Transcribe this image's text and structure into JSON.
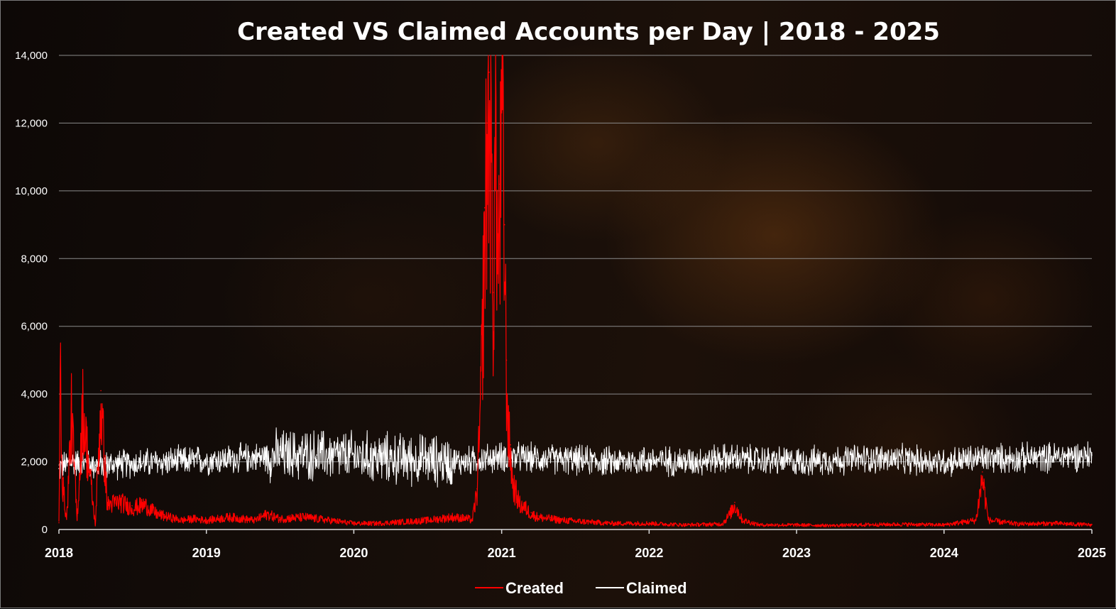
{
  "chart_data": {
    "type": "line",
    "title": "Created VS Claimed Accounts per Day | 2018 - 2025",
    "xlabel": "",
    "ylabel": "",
    "x_axis": "date",
    "xlim": [
      "2018-01-01",
      "2025-01-01"
    ],
    "ylim": [
      0,
      14000
    ],
    "x_ticks": [
      "2018",
      "2019",
      "2020",
      "2021",
      "2022",
      "2023",
      "2024",
      "2025"
    ],
    "y_ticks": [
      "0",
      "2,000",
      "4,000",
      "6,000",
      "8,000",
      "10,000",
      "12,000",
      "14,000"
    ],
    "grid": "horizontal",
    "legend": "bottom-center",
    "series": [
      {
        "name": "Created",
        "color": "#ff0000",
        "x": [
          "2018-01-01",
          "2018-01-05",
          "2018-01-10",
          "2018-01-20",
          "2018-02-01",
          "2018-02-15",
          "2018-03-01",
          "2018-04-01",
          "2018-04-15",
          "2018-05-01",
          "2018-06-01",
          "2018-07-01",
          "2018-08-01",
          "2018-09-01",
          "2018-10-01",
          "2018-11-01",
          "2018-12-01",
          "2019-01-01",
          "2019-03-01",
          "2019-05-01",
          "2019-06-01",
          "2019-07-01",
          "2019-09-01",
          "2019-11-01",
          "2020-01-01",
          "2020-03-01",
          "2020-05-01",
          "2020-07-01",
          "2020-09-01",
          "2020-10-10",
          "2020-10-20",
          "2020-11-01",
          "2020-11-10",
          "2020-11-20",
          "2020-11-25",
          "2020-12-01",
          "2020-12-07",
          "2020-12-12",
          "2020-12-17",
          "2020-12-22",
          "2020-12-28",
          "2021-01-03",
          "2021-01-08",
          "2021-01-13",
          "2021-01-18",
          "2021-01-23",
          "2021-01-28",
          "2021-02-05",
          "2021-02-15",
          "2021-03-01",
          "2021-03-15",
          "2021-04-01",
          "2021-05-01",
          "2021-06-01",
          "2021-08-01",
          "2021-10-01",
          "2022-01-01",
          "2022-04-01",
          "2022-07-01",
          "2022-07-20",
          "2022-08-01",
          "2022-08-20",
          "2022-10-01",
          "2023-01-01",
          "2023-04-01",
          "2023-07-01",
          "2023-10-01",
          "2024-01-01",
          "2024-03-20",
          "2024-04-05",
          "2024-04-20",
          "2024-07-01",
          "2024-10-01",
          "2025-01-01"
        ],
        "values": [
          200,
          5100,
          1500,
          300,
          3700,
          300,
          3900,
          150,
          4100,
          800,
          900,
          700,
          800,
          500,
          400,
          300,
          350,
          300,
          400,
          300,
          500,
          350,
          400,
          300,
          200,
          200,
          250,
          300,
          400,
          350,
          300,
          1200,
          4000,
          9500,
          12000,
          13500,
          11000,
          7000,
          14000,
          8500,
          10200,
          14000,
          9000,
          5000,
          3000,
          2500,
          1500,
          1200,
          800,
          700,
          500,
          400,
          350,
          300,
          250,
          200,
          200,
          150,
          180,
          500,
          800,
          300,
          150,
          150,
          130,
          160,
          170,
          150,
          300,
          1700,
          300,
          180,
          200,
          150
        ]
      },
      {
        "name": "Claimed",
        "color": "#ffffff",
        "x": [
          "2018-01-01",
          "2018-02-01",
          "2018-04-01",
          "2018-07-01",
          "2018-10-01",
          "2019-01-01",
          "2019-04-01",
          "2019-07-01",
          "2019-10-01",
          "2020-01-01",
          "2020-04-01",
          "2020-07-01",
          "2020-10-01",
          "2021-01-01",
          "2021-04-01",
          "2021-07-01",
          "2021-10-01",
          "2022-01-01",
          "2022-04-01",
          "2022-07-01",
          "2022-10-01",
          "2023-01-01",
          "2023-04-01",
          "2023-07-01",
          "2023-10-01",
          "2024-01-01",
          "2024-04-01",
          "2024-07-01",
          "2024-10-01",
          "2025-01-01"
        ],
        "values": [
          1800,
          2000,
          1900,
          1950,
          2000,
          2050,
          2100,
          2200,
          2200,
          2150,
          2100,
          2050,
          2000,
          2150,
          2100,
          2050,
          2000,
          2050,
          2000,
          2100,
          2050,
          2000,
          2050,
          2100,
          2050,
          2000,
          2100,
          2100,
          2150,
          2200
        ]
      }
    ]
  }
}
